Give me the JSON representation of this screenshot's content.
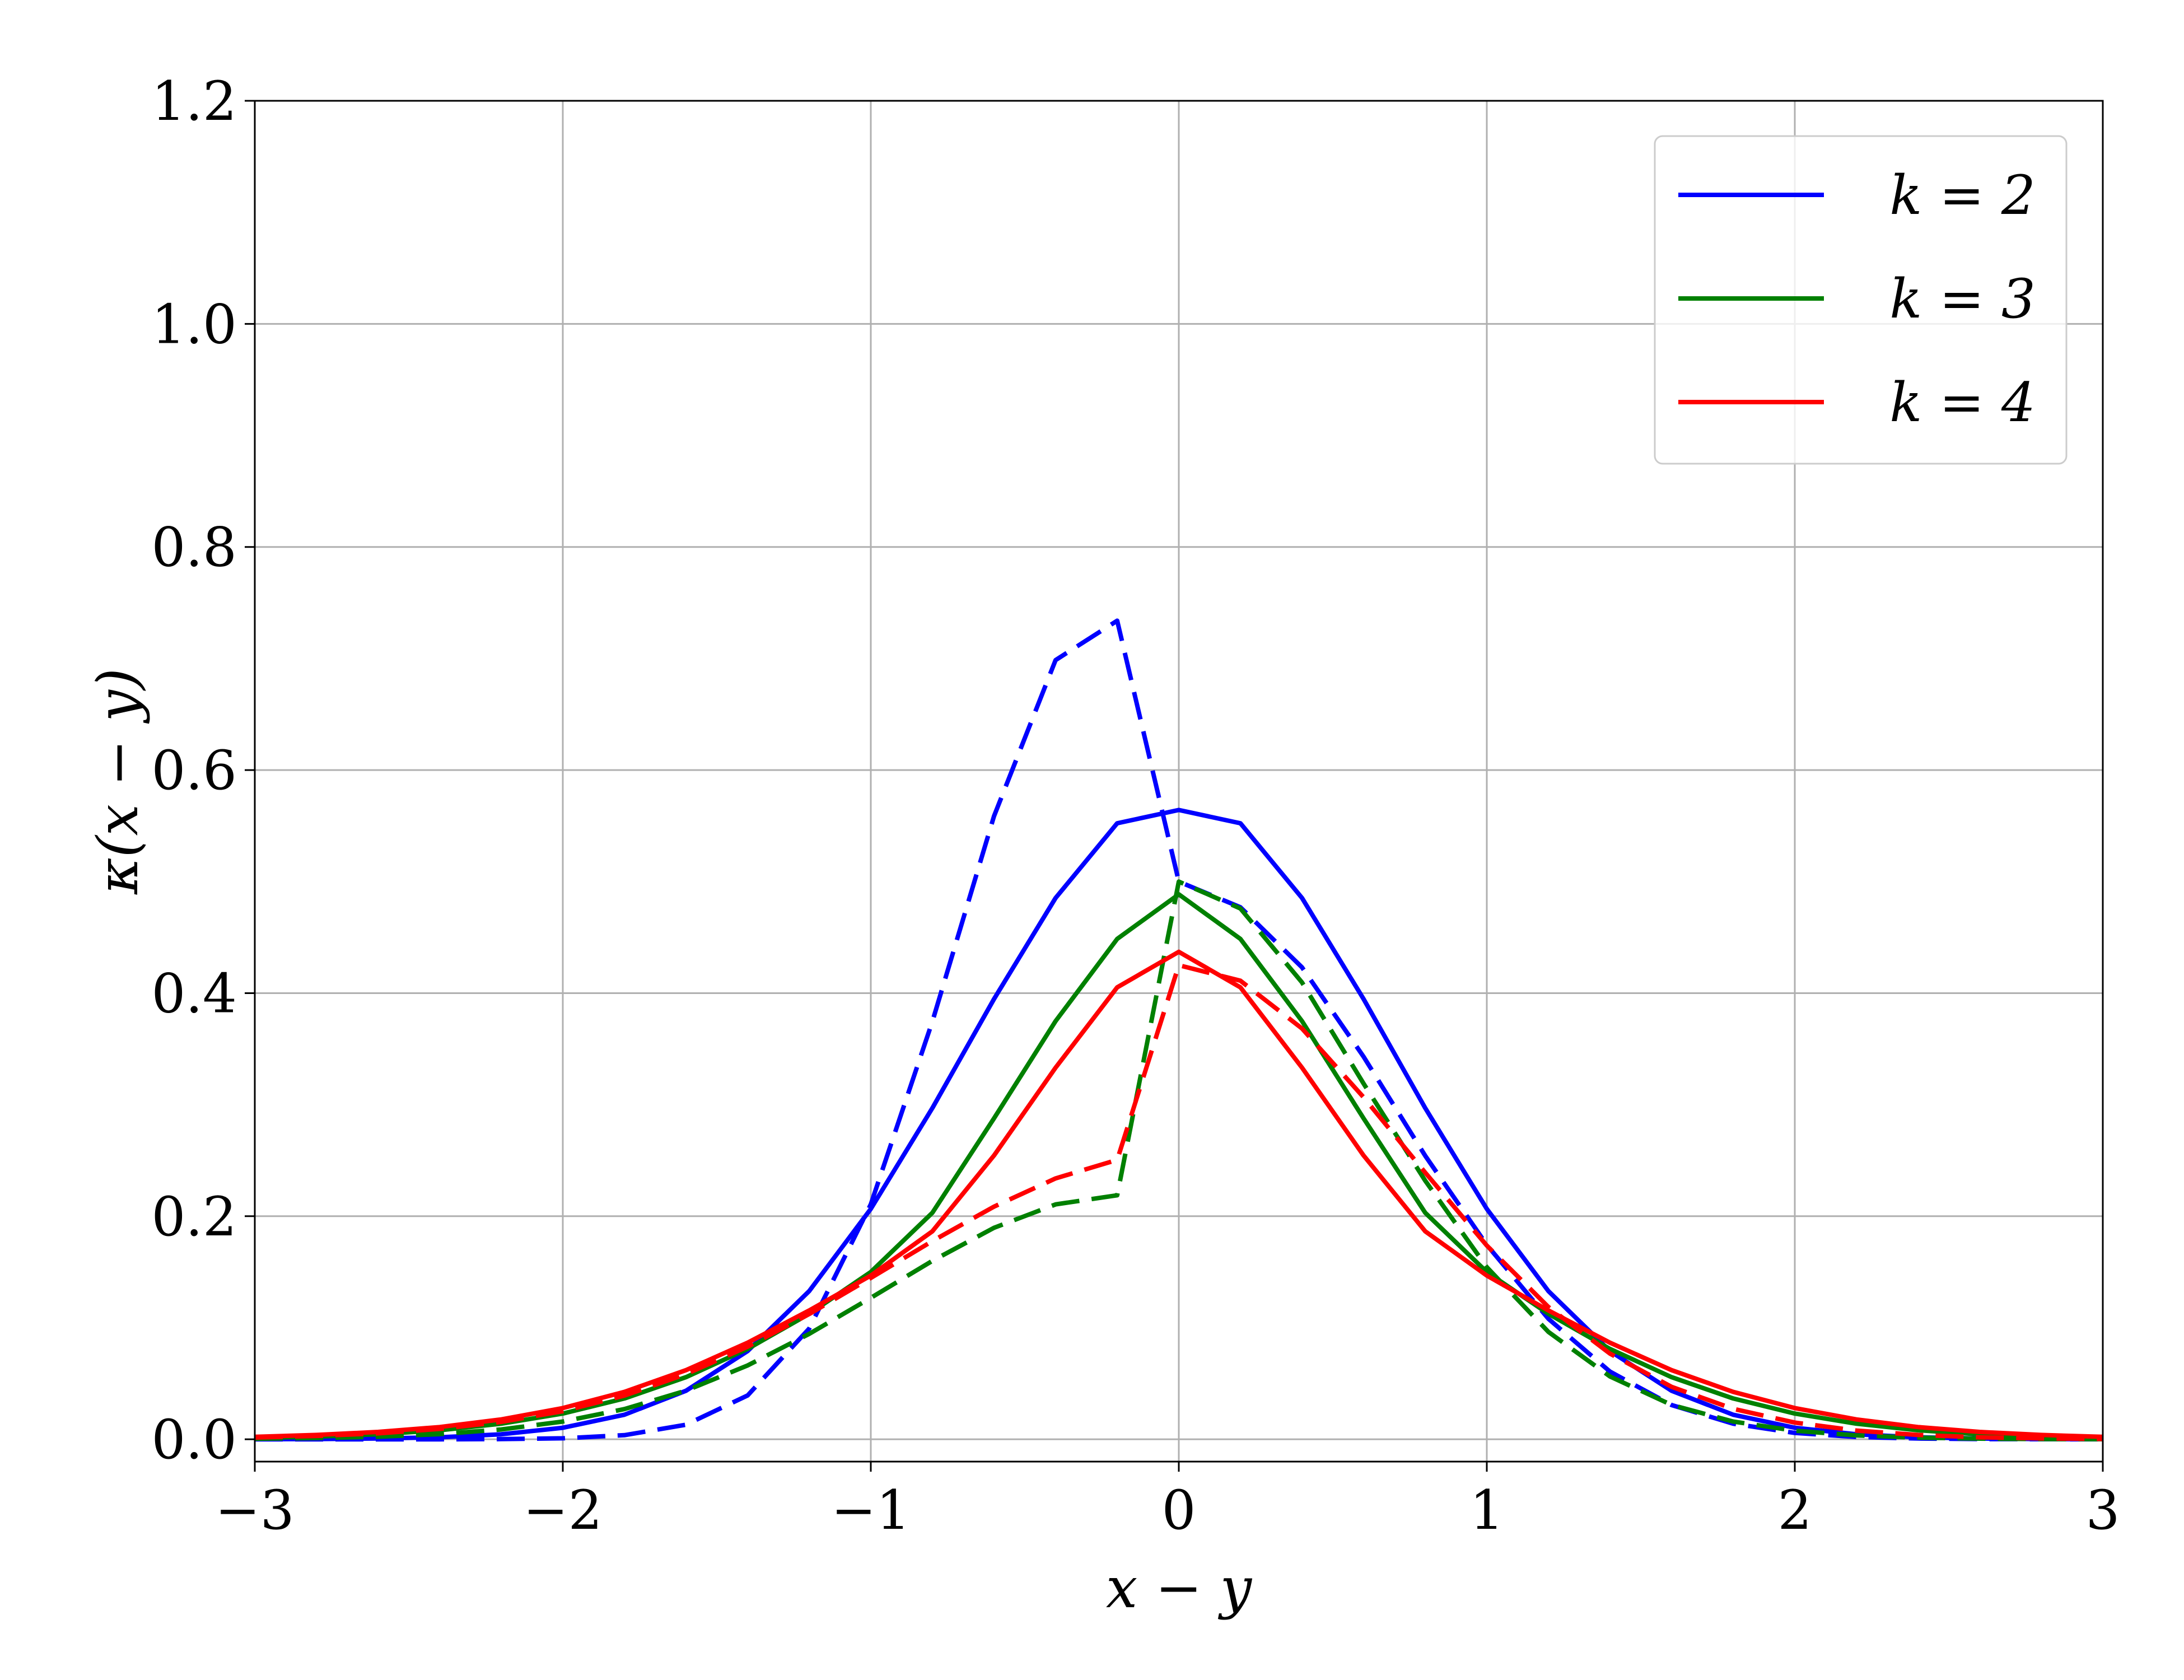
{
  "chart_data": {
    "type": "line",
    "xlabel": "x − y",
    "ylabel": "κ(x − y)",
    "xlim": [
      -3,
      3
    ],
    "ylim": [
      -0.02,
      1.2
    ],
    "x_ticks": [
      -3,
      -2,
      -1,
      0,
      1,
      2,
      3
    ],
    "x_tick_labels": [
      "−3",
      "−2",
      "−1",
      "0",
      "1",
      "2",
      "3"
    ],
    "y_ticks": [
      0.0,
      0.2,
      0.4,
      0.6,
      0.8,
      1.0,
      1.2
    ],
    "y_tick_labels": [
      "0.0",
      "0.2",
      "0.4",
      "0.6",
      "0.8",
      "1.0",
      "1.2"
    ],
    "grid": true,
    "legend_position": "top-right",
    "x": [
      -3.0,
      -2.8,
      -2.6,
      -2.4,
      -2.2,
      -2.0,
      -1.8,
      -1.6,
      -1.4,
      -1.2,
      -1.0,
      -0.8,
      -0.6,
      -0.4,
      -0.2,
      0.0,
      0.2,
      0.4,
      0.6,
      0.8,
      1.0,
      1.2,
      1.4,
      1.6,
      1.8,
      2.0,
      2.2,
      2.4,
      2.6,
      2.8,
      3.0
    ],
    "series": [
      {
        "name": "k = 2",
        "color": "#0000ff",
        "style": "solid",
        "values": [
          0.0001,
          0.0002,
          0.0007,
          0.0018,
          0.0045,
          0.0103,
          0.022,
          0.0435,
          0.0791,
          0.1329,
          0.2066,
          0.297,
          0.3947,
          0.4853,
          0.5523,
          0.5642,
          0.5523,
          0.4853,
          0.3947,
          0.297,
          0.2066,
          0.1329,
          0.0791,
          0.0435,
          0.022,
          0.0103,
          0.0045,
          0.0018,
          0.0007,
          0.0002,
          0.0001
        ]
      },
      {
        "name": "",
        "color": "#0000ff",
        "style": "dashed",
        "values": [
          0.0,
          0.0,
          0.0,
          0.0,
          0.0002,
          0.0009,
          0.0037,
          0.0131,
          0.0393,
          0.0993,
          0.2107,
          0.3746,
          0.5586,
          0.6986,
          0.7339,
          0.5,
          0.477,
          0.4231,
          0.343,
          0.2542,
          0.1743,
          0.108,
          0.0607,
          0.0307,
          0.014,
          0.0057,
          0.0021,
          0.0007,
          0.0002,
          0.0001,
          0.0
        ]
      },
      {
        "name": "k = 3",
        "color": "#008000",
        "style": "solid",
        "values": [
          0.0012,
          0.0024,
          0.0045,
          0.0081,
          0.014,
          0.0231,
          0.0366,
          0.0557,
          0.081,
          0.1125,
          0.15,
          0.2031,
          0.2877,
          0.3749,
          0.4486,
          0.4886,
          0.4486,
          0.3749,
          0.2877,
          0.2031,
          0.15,
          0.1125,
          0.081,
          0.0557,
          0.0366,
          0.0231,
          0.014,
          0.0081,
          0.0045,
          0.0024,
          0.0012
        ]
      },
      {
        "name": "",
        "color": "#008000",
        "style": "dashed",
        "values": [
          0.0005,
          0.0011,
          0.0023,
          0.0046,
          0.0088,
          0.0159,
          0.0271,
          0.0436,
          0.0662,
          0.0945,
          0.1268,
          0.16,
          0.1896,
          0.2106,
          0.2188,
          0.5,
          0.4759,
          0.4096,
          0.3189,
          0.2319,
          0.1543,
          0.0963,
          0.0563,
          0.0308,
          0.0159,
          0.0077,
          0.0035,
          0.0015,
          0.0006,
          0.0002,
          0.0001
        ]
      },
      {
        "name": "k = 4",
        "color": "#ff0000",
        "style": "solid",
        "values": [
          0.0022,
          0.0039,
          0.0066,
          0.011,
          0.0178,
          0.028,
          0.0425,
          0.062,
          0.0866,
          0.1155,
          0.1468,
          0.1865,
          0.2544,
          0.3332,
          0.4052,
          0.437,
          0.4052,
          0.3332,
          0.2544,
          0.1865,
          0.1468,
          0.1155,
          0.0866,
          0.062,
          0.0425,
          0.028,
          0.0178,
          0.011,
          0.0066,
          0.0039,
          0.0022
        ]
      },
      {
        "name": "",
        "color": "#ff0000",
        "style": "dashed",
        "values": [
          0.0016,
          0.003,
          0.0053,
          0.0093,
          0.0156,
          0.0252,
          0.0392,
          0.0584,
          0.083,
          0.1123,
          0.1446,
          0.1777,
          0.2086,
          0.2339,
          0.2505,
          0.425,
          0.4111,
          0.3683,
          0.3066,
          0.2391,
          0.1737,
          0.1186,
          0.0768,
          0.047,
          0.0273,
          0.015,
          0.0078,
          0.0039,
          0.0018,
          0.0008,
          0.0003
        ]
      }
    ]
  }
}
